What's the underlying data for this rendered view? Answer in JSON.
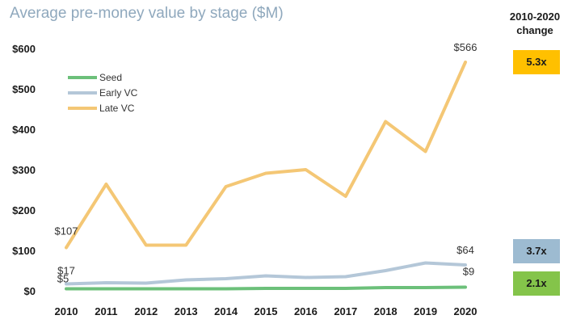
{
  "chart_data": {
    "type": "line",
    "title": "Average pre-money value by stage ($M)",
    "x": [
      "2010",
      "2011",
      "2012",
      "2013",
      "2014",
      "2015",
      "2016",
      "2017",
      "2018",
      "2019",
      "2020"
    ],
    "series": [
      {
        "name": "Seed",
        "color": "#6cc07a",
        "values": [
          5,
          5,
          5,
          5,
          5,
          6,
          6,
          6,
          8,
          8,
          9
        ]
      },
      {
        "name": "Early VC",
        "color": "#b4c7d8",
        "values": [
          17,
          20,
          19,
          27,
          30,
          37,
          33,
          35,
          50,
          69,
          64
        ]
      },
      {
        "name": "Late VC",
        "color": "#f4c775",
        "values": [
          107,
          264,
          113,
          113,
          258,
          291,
          300,
          234,
          419,
          345,
          566
        ]
      }
    ],
    "ylim": [
      0,
      600
    ],
    "yticks": [
      0,
      100,
      200,
      300,
      400,
      500,
      600
    ],
    "ytick_labels": [
      "$0",
      "$100",
      "$200",
      "$300",
      "$400",
      "$500",
      "$600"
    ],
    "data_labels": [
      {
        "series": "Late VC",
        "x": "2010",
        "text": "$107"
      },
      {
        "series": "Late VC",
        "x": "2020",
        "text": "$566"
      },
      {
        "series": "Early VC",
        "x": "2010",
        "text": "$17"
      },
      {
        "series": "Early VC",
        "x": "2020",
        "text": "$64"
      },
      {
        "series": "Seed",
        "x": "2010",
        "text": "$5"
      },
      {
        "series": "Seed",
        "x": "2020",
        "text": "$9"
      }
    ],
    "legend_position": "top-left",
    "grid": false
  },
  "change_panel": {
    "heading_line1": "2010-2020",
    "heading_line2": "change",
    "late_vc": {
      "text": "5.3x",
      "color": "#ffc000"
    },
    "early_vc": {
      "text": "3.7x",
      "color": "#9dbbd1"
    },
    "seed": {
      "text": "2.1x",
      "color": "#84c44a"
    }
  }
}
